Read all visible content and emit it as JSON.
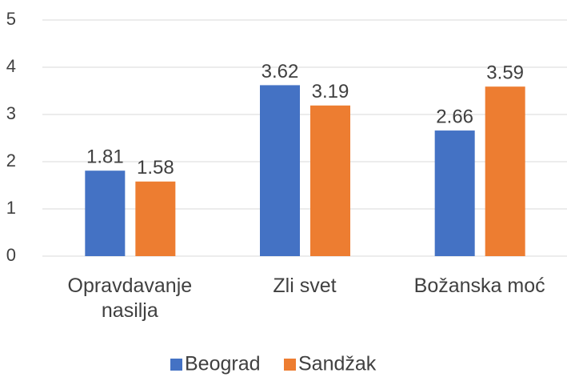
{
  "chart_data": {
    "type": "bar",
    "categories": [
      "Opravdavanje nasilja",
      "Zli svet",
      "Božanska moć"
    ],
    "series": [
      {
        "name": "Beograd",
        "color": "#4472c4",
        "values": [
          1.81,
          3.62,
          2.66
        ]
      },
      {
        "name": "Sandžak",
        "color": "#ed7d31",
        "values": [
          1.58,
          3.19,
          3.59
        ]
      }
    ],
    "ylim": [
      0,
      5
    ],
    "yticks": [
      0,
      1,
      2,
      3,
      4,
      5
    ],
    "grid": true,
    "legend": "bottom"
  }
}
